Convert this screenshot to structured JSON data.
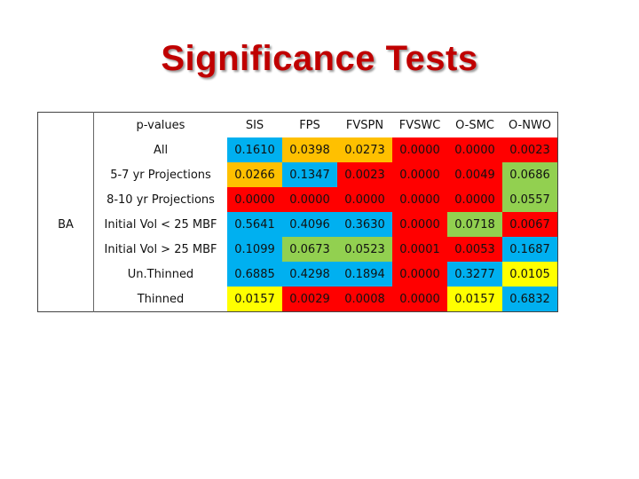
{
  "title": "Significance Tests",
  "table": {
    "header_label": "p-values",
    "group_label": "BA",
    "columns": [
      "SIS",
      "FPS",
      "FVSPN",
      "FVSWC",
      "O-SMC",
      "O-NWO"
    ],
    "rows": [
      {
        "label": "All",
        "values": [
          "0.1610",
          "0.0398",
          "0.0273",
          "0.0000",
          "0.0000",
          "0.0023"
        ],
        "colors": [
          "blue",
          "orange",
          "orange",
          "red",
          "red",
          "red"
        ]
      },
      {
        "label": "5-7 yr Projections",
        "values": [
          "0.0266",
          "0.1347",
          "0.0023",
          "0.0000",
          "0.0049",
          "0.0686"
        ],
        "colors": [
          "orange",
          "blue",
          "red",
          "red",
          "red",
          "green"
        ]
      },
      {
        "label": "8-10 yr Projections",
        "values": [
          "0.0000",
          "0.0000",
          "0.0000",
          "0.0000",
          "0.0000",
          "0.0557"
        ],
        "colors": [
          "red",
          "red",
          "red",
          "red",
          "red",
          "green"
        ]
      },
      {
        "label": "Initial Vol < 25 MBF",
        "values": [
          "0.5641",
          "0.4096",
          "0.3630",
          "0.0000",
          "0.0718",
          "0.0067"
        ],
        "colors": [
          "blue",
          "blue",
          "blue",
          "red",
          "green",
          "red"
        ]
      },
      {
        "label": "Initial Vol > 25 MBF",
        "values": [
          "0.1099",
          "0.0673",
          "0.0523",
          "0.0001",
          "0.0053",
          "0.1687"
        ],
        "colors": [
          "blue",
          "green",
          "green",
          "red",
          "red",
          "blue"
        ]
      },
      {
        "label": "Un.Thinned",
        "values": [
          "0.6885",
          "0.4298",
          "0.1894",
          "0.0000",
          "0.3277",
          "0.0105"
        ],
        "colors": [
          "blue",
          "blue",
          "blue",
          "red",
          "blue",
          "yellow"
        ]
      },
      {
        "label": "Thinned",
        "values": [
          "0.0157",
          "0.0029",
          "0.0008",
          "0.0000",
          "0.0157",
          "0.6832"
        ],
        "colors": [
          "yellow",
          "red",
          "red",
          "red",
          "yellow",
          "blue"
        ]
      }
    ]
  },
  "colors": {
    "blue": "#00b0f0",
    "red": "#ff0000",
    "orange": "#ffc000",
    "green": "#92d050",
    "yellow": "#ffff00",
    "title": "#c00000"
  }
}
